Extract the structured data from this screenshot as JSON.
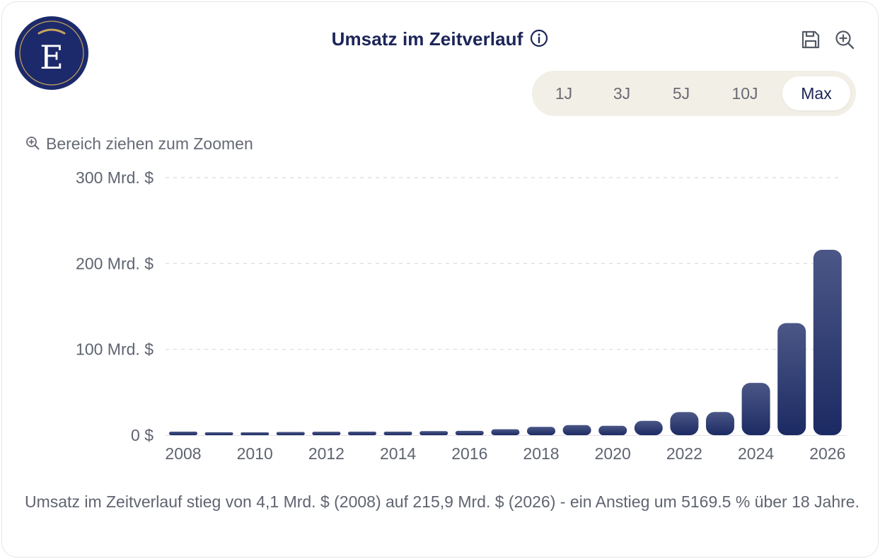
{
  "header": {
    "title": "Umsatz im Zeitverlauf",
    "logo_letter": "E",
    "save_icon": "save-icon",
    "zoom_icon": "zoom-in-icon",
    "info_icon": "info-icon"
  },
  "ranges": {
    "options": [
      "1J",
      "3J",
      "5J",
      "10J",
      "Max"
    ],
    "selected": "Max"
  },
  "zoom_hint": "Bereich ziehen zum Zoomen",
  "summary": "Umsatz im Zeitverlauf stieg von 4,1 Mrd. $ (2008) auf 215,9 Mrd. $ (2026) - ein Anstieg um 5169.5 % über 18 Jahre.",
  "colors": {
    "navy": "#1b2559",
    "bar_top": "#4b5786",
    "bar_bottom": "#1c2a63",
    "range_bg": "#f2efe7",
    "logo_bg": "#1c2a6b",
    "logo_accent": "#c8a45c"
  },
  "chart_data": {
    "type": "bar",
    "x": [
      2008,
      2009,
      2010,
      2011,
      2012,
      2013,
      2014,
      2015,
      2016,
      2017,
      2018,
      2019,
      2020,
      2021,
      2022,
      2023,
      2024,
      2025,
      2026
    ],
    "values": [
      4.1,
      3.4,
      3.3,
      3.7,
      4.0,
      4.1,
      4.1,
      4.7,
      5.0,
      6.9,
      9.7,
      11.7,
      10.9,
      16.7,
      26.9,
      27.0,
      60.9,
      130.5,
      215.9
    ],
    "unit": "Mrd. $",
    "ylim": [
      0,
      300
    ],
    "yticks": [
      0,
      100,
      200,
      300
    ],
    "ytick_labels": [
      "0 $",
      "100 Mrd. $",
      "200 Mrd. $",
      "300 Mrd. $"
    ],
    "xtick_labels": [
      "2008",
      "2010",
      "2012",
      "2014",
      "2016",
      "2018",
      "2020",
      "2022",
      "2024",
      "2026"
    ],
    "grid": true,
    "legend": "none"
  }
}
